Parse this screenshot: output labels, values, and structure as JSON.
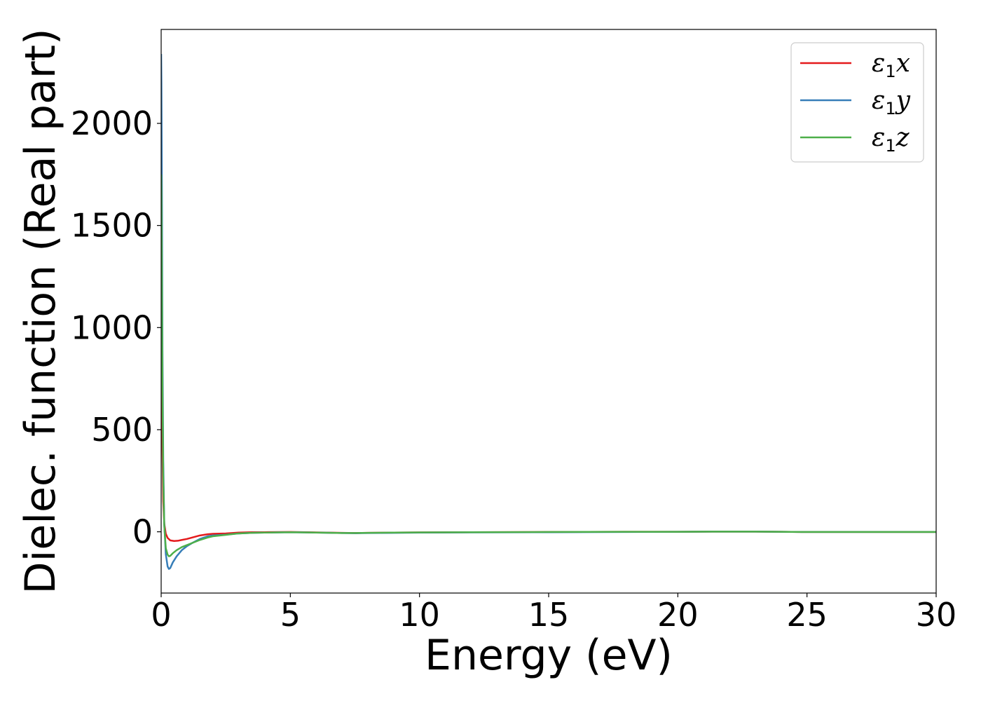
{
  "chart_data": {
    "type": "line",
    "xlabel": "Energy (eV)",
    "ylabel": "Dielec. function (Real part)",
    "xlim": [
      0,
      30
    ],
    "ylim": [
      -300,
      2460
    ],
    "xticks": [
      0,
      5,
      10,
      15,
      20,
      25,
      30
    ],
    "yticks": [
      0,
      500,
      1000,
      1500,
      2000
    ],
    "grid": false,
    "legend_position": "top-right",
    "series": [
      {
        "name": "ε1x",
        "legend_main": "ε",
        "legend_sub": "1",
        "legend_suffix": "x",
        "color": "#e41a1c",
        "x": [
          0.0,
          0.01,
          0.03,
          0.05,
          0.08,
          0.12,
          0.18,
          0.25,
          0.35,
          0.5,
          0.65,
          0.8,
          1.0,
          1.2,
          1.5,
          1.8,
          2.0,
          2.5,
          3.0,
          3.5,
          4.0,
          5.0,
          6.0,
          7.0,
          7.5,
          8.0,
          9.0,
          10.0,
          12.0,
          15.0,
          18.0,
          20.0,
          22.0,
          23.0,
          24.0,
          25.0,
          27.0,
          30.0
        ],
        "y": [
          1200,
          1150,
          800,
          400,
          150,
          40,
          -10,
          -30,
          -42,
          -45,
          -44,
          -40,
          -35,
          -28,
          -18,
          -12,
          -10,
          -8,
          -4,
          -2,
          -2,
          -1,
          -3,
          -5,
          -6,
          -5,
          -4,
          -3,
          -2,
          -1,
          0,
          0,
          1,
          1,
          0,
          -1,
          -1,
          -1
        ]
      },
      {
        "name": "ε1y",
        "legend_main": "ε",
        "legend_sub": "1",
        "legend_suffix": "y",
        "color": "#377eb8",
        "x": [
          0.0,
          0.01,
          0.03,
          0.05,
          0.08,
          0.12,
          0.18,
          0.25,
          0.3,
          0.35,
          0.45,
          0.6,
          0.8,
          1.0,
          1.2,
          1.5,
          1.8,
          2.0,
          2.5,
          3.0,
          3.5,
          4.0,
          5.0,
          6.0,
          7.0,
          7.5,
          8.0,
          9.0,
          10.0,
          12.0,
          15.0,
          18.0,
          20.0,
          22.0,
          23.0,
          24.0,
          25.0,
          27.0,
          30.0
        ],
        "y": [
          2340,
          2200,
          1600,
          900,
          350,
          40,
          -110,
          -170,
          -182,
          -178,
          -150,
          -120,
          -90,
          -70,
          -55,
          -35,
          -22,
          -18,
          -14,
          -8,
          -5,
          -4,
          -2,
          -4,
          -6,
          -7,
          -6,
          -5,
          -4,
          -3,
          -2,
          -1,
          0,
          1,
          1,
          0,
          -1,
          -1,
          -1
        ]
      },
      {
        "name": "ε1z",
        "legend_main": "ε",
        "legend_sub": "1",
        "legend_suffix": "z",
        "color": "#4daf4a",
        "x": [
          0.0,
          0.01,
          0.03,
          0.05,
          0.08,
          0.12,
          0.18,
          0.25,
          0.3,
          0.35,
          0.45,
          0.6,
          0.8,
          1.0,
          1.2,
          1.5,
          1.8,
          2.0,
          2.5,
          3.0,
          3.5,
          4.0,
          5.0,
          6.0,
          7.0,
          7.5,
          8.0,
          9.0,
          10.0,
          12.0,
          15.0,
          18.0,
          20.0,
          22.0,
          23.0,
          24.0,
          25.0,
          27.0,
          30.0
        ],
        "y": [
          1750,
          1650,
          1200,
          700,
          280,
          30,
          -80,
          -112,
          -120,
          -118,
          -105,
          -90,
          -75,
          -65,
          -55,
          -40,
          -28,
          -22,
          -15,
          -8,
          -5,
          -4,
          -2,
          -4,
          -6,
          -6,
          -5,
          -4,
          -3,
          -2,
          -1,
          0,
          0,
          1,
          1,
          0,
          -1,
          -1,
          -1
        ]
      }
    ]
  }
}
